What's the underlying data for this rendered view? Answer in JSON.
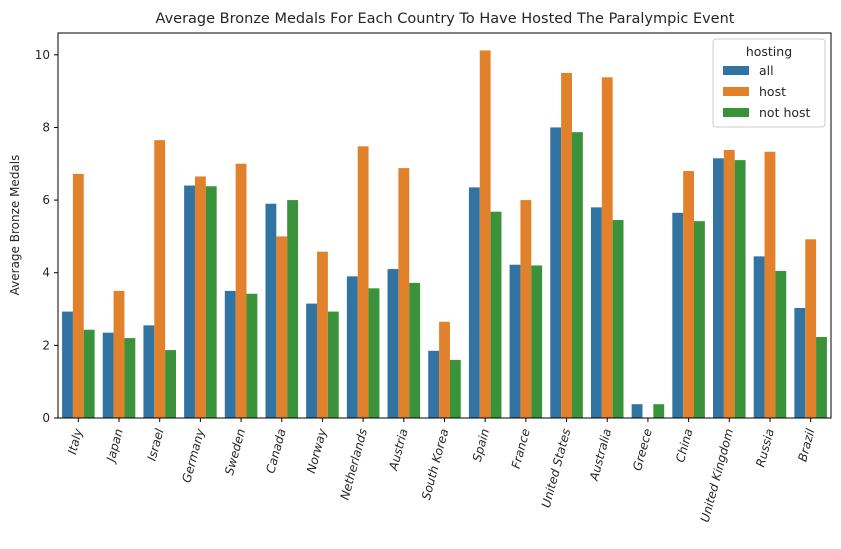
{
  "chart_data": {
    "type": "bar",
    "title": "Average Bronze Medals For Each Country To Have Hosted The Paralympic Event",
    "xlabel": "",
    "ylabel": "Average Bronze Medals",
    "ylim": [
      0,
      10.6
    ],
    "yticks": [
      0,
      2,
      4,
      6,
      8,
      10
    ],
    "grid": false,
    "legend": {
      "title": "hosting",
      "placement": "top-right"
    },
    "categories": [
      "Italy",
      "Japan",
      "Israel",
      "Germany",
      "Sweden",
      "Canada",
      "Norway",
      "Netherlands",
      "Austria",
      "South Korea",
      "Spain",
      "France",
      "United States",
      "Australia",
      "Greece",
      "China",
      "United Kingdom",
      "Russia",
      "Brazil"
    ],
    "series": [
      {
        "name": "all",
        "color": "#3274a1",
        "values": [
          2.93,
          2.35,
          2.55,
          6.4,
          3.5,
          5.9,
          3.15,
          3.9,
          4.1,
          1.85,
          6.35,
          4.22,
          8.0,
          5.8,
          0.38,
          5.65,
          7.15,
          4.45,
          3.03
        ]
      },
      {
        "name": "host",
        "color": "#e1812c",
        "values": [
          6.72,
          3.5,
          7.65,
          6.65,
          7.0,
          5.0,
          4.58,
          7.48,
          6.88,
          2.65,
          10.12,
          6.0,
          9.5,
          9.38,
          null,
          6.8,
          7.38,
          7.33,
          4.92
        ]
      },
      {
        "name": "not host",
        "color": "#3a923a",
        "values": [
          2.43,
          2.2,
          1.87,
          6.38,
          3.42,
          6.0,
          2.93,
          3.57,
          3.72,
          1.6,
          5.68,
          4.2,
          7.87,
          5.45,
          0.38,
          5.42,
          7.1,
          4.05,
          2.23
        ]
      }
    ]
  }
}
